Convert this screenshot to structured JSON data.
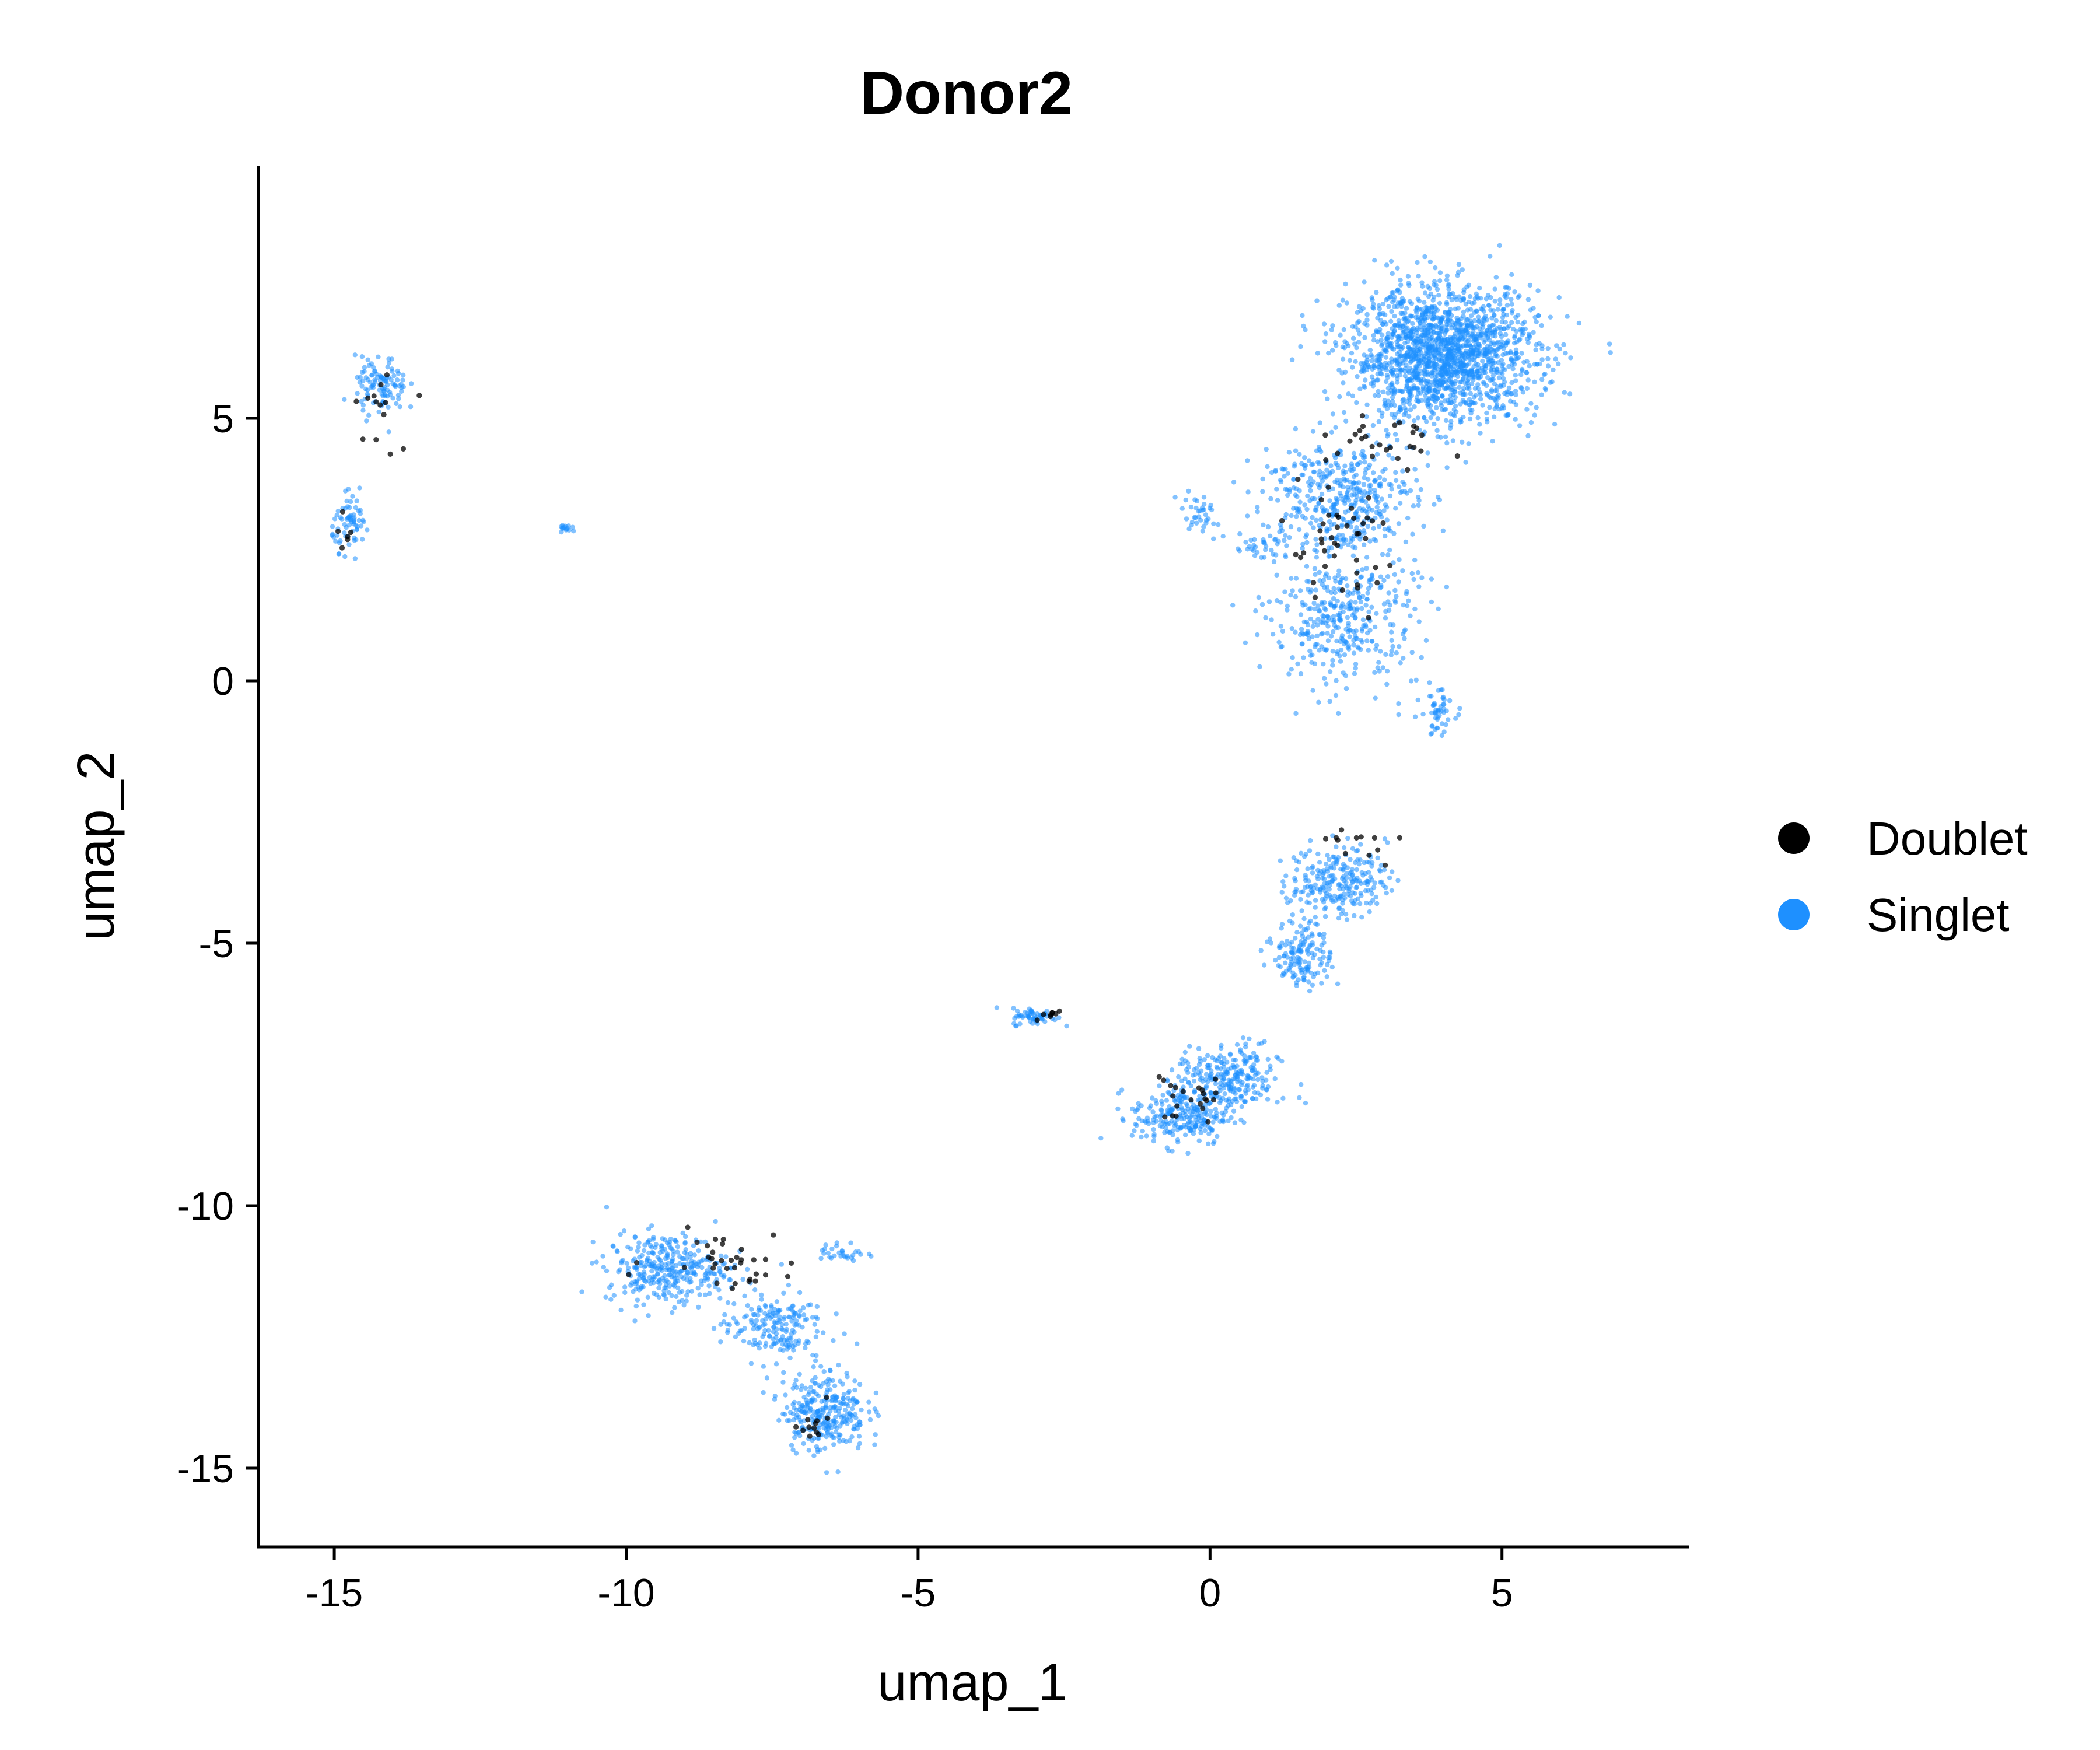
{
  "chart_data": {
    "type": "scatter",
    "title": "Donor2",
    "xlabel": "umap_1",
    "ylabel": "umap_2",
    "xlim": [
      -16.3,
      8.2
    ],
    "ylim": [
      -16.5,
      9.8
    ],
    "x_ticks": [
      {
        "value": -15,
        "label": "-15"
      },
      {
        "value": -10,
        "label": "-10"
      },
      {
        "value": -5,
        "label": "-5"
      },
      {
        "value": 0,
        "label": "0"
      },
      {
        "value": 5,
        "label": "5"
      }
    ],
    "y_ticks": [
      {
        "value": 5,
        "label": "5"
      },
      {
        "value": 0,
        "label": "0"
      },
      {
        "value": -5,
        "label": "-5"
      },
      {
        "value": -10,
        "label": "-10"
      },
      {
        "value": -15,
        "label": "-15"
      }
    ],
    "grid": false,
    "legend": {
      "position": "right",
      "entries": [
        {
          "label": "Doublet",
          "color": "#000000"
        },
        {
          "label": "Singlet",
          "color": "#1E90FF"
        }
      ]
    },
    "series": [
      {
        "name": "Singlet",
        "color": "#1E90FF",
        "clusters": [
          {
            "center": [
              4.0,
              6.2
            ],
            "spread": [
              1.45,
              1.15
            ],
            "count": 1700
          },
          {
            "center": [
              2.2,
              3.5
            ],
            "spread": [
              1.2,
              1.0
            ],
            "count": 420
          },
          {
            "center": [
              2.3,
              1.2
            ],
            "spread": [
              1.15,
              1.2
            ],
            "count": 380
          },
          {
            "center": [
              3.9,
              -0.6
            ],
            "spread": [
              0.25,
              0.4
            ],
            "count": 50
          },
          {
            "center": [
              -0.2,
              3.2
            ],
            "spread": [
              0.3,
              0.4
            ],
            "count": 35
          },
          {
            "center": [
              0.8,
              2.5
            ],
            "spread": [
              0.5,
              0.2
            ],
            "count": 30
          },
          {
            "center": [
              2.2,
              -3.8
            ],
            "spread": [
              0.75,
              0.6
            ],
            "count": 240
          },
          {
            "center": [
              1.6,
              -5.2
            ],
            "spread": [
              0.45,
              0.6
            ],
            "count": 150
          },
          {
            "center": [
              0.3,
              -7.6
            ],
            "spread": [
              0.8,
              0.6
            ],
            "count": 260
          },
          {
            "center": [
              -0.5,
              -8.3
            ],
            "spread": [
              0.75,
              0.5
            ],
            "count": 230
          },
          {
            "center": [
              -3.0,
              -6.4
            ],
            "spread": [
              0.35,
              0.15
            ],
            "count": 60
          },
          {
            "center": [
              -9.3,
              -11.2
            ],
            "spread": [
              0.95,
              0.6
            ],
            "count": 330
          },
          {
            "center": [
              -7.5,
              -12.3
            ],
            "spread": [
              0.8,
              0.6
            ],
            "count": 190
          },
          {
            "center": [
              -6.6,
              -13.9
            ],
            "spread": [
              0.65,
              0.7
            ],
            "count": 290
          },
          {
            "center": [
              -6.3,
              -10.9
            ],
            "spread": [
              0.35,
              0.2
            ],
            "count": 30
          },
          {
            "center": [
              -14.2,
              5.6
            ],
            "spread": [
              0.4,
              0.5
            ],
            "count": 110
          },
          {
            "center": [
              -14.7,
              3.0
            ],
            "spread": [
              0.3,
              0.45
            ],
            "count": 70
          },
          {
            "center": [
              -11.0,
              2.9
            ],
            "spread": [
              0.12,
              0.07
            ],
            "count": 15
          }
        ]
      },
      {
        "name": "Doublet",
        "color": "#000000",
        "clusters": [
          {
            "center": [
              2.2,
              2.5
            ],
            "spread": [
              1.0,
              1.2
            ],
            "count": 45
          },
          {
            "center": [
              3.0,
              4.5
            ],
            "spread": [
              1.0,
              0.6
            ],
            "count": 25
          },
          {
            "center": [
              2.5,
              -3.1
            ],
            "spread": [
              0.6,
              0.5
            ],
            "count": 12
          },
          {
            "center": [
              -0.3,
              -7.9
            ],
            "spread": [
              0.6,
              0.5
            ],
            "count": 22
          },
          {
            "center": [
              -2.8,
              -6.4
            ],
            "spread": [
              0.3,
              0.1
            ],
            "count": 8
          },
          {
            "center": [
              -8.3,
              -11.0
            ],
            "spread": [
              1.1,
              0.5
            ],
            "count": 35
          },
          {
            "center": [
              -6.8,
              -14.0
            ],
            "spread": [
              0.4,
              0.5
            ],
            "count": 12
          },
          {
            "center": [
              -14.2,
              5.2
            ],
            "spread": [
              0.4,
              0.7
            ],
            "count": 14
          },
          {
            "center": [
              -14.8,
              2.8
            ],
            "spread": [
              0.2,
              0.3
            ],
            "count": 6
          }
        ]
      }
    ]
  }
}
